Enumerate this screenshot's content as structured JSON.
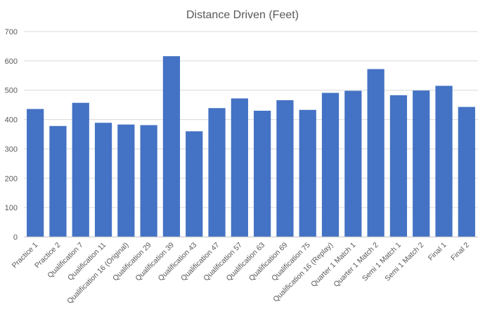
{
  "chart_data": {
    "type": "bar",
    "title": "Distance Driven (Feet)",
    "xlabel": "",
    "ylabel": "",
    "ylim": [
      0,
      700
    ],
    "yticks": [
      0,
      100,
      200,
      300,
      400,
      500,
      600,
      700
    ],
    "grid": true,
    "legend": "none",
    "bar_color": "#4472C4",
    "categories": [
      "Practice 1",
      "Practice 2",
      "Qualification 7",
      "Qualification 11",
      "Qualification 16 (Original)",
      "Qualification 29",
      "Qualification 39",
      "Qualification 43",
      "Qualification 47",
      "Qualification 57",
      "Qualification 63",
      "Qualification 69",
      "Qualification 75",
      "Qualification 16 (Replay)",
      "Quarter 1 Match 1",
      "Quarter 1 Match 2",
      "Semi 1 Match 1",
      "Semi 1 Match 2",
      "Final 1",
      "Final 2"
    ],
    "values": [
      436,
      378,
      457,
      389,
      383,
      381,
      616,
      360,
      439,
      472,
      430,
      466,
      433,
      491,
      498,
      572,
      483,
      499,
      515,
      443
    ]
  }
}
